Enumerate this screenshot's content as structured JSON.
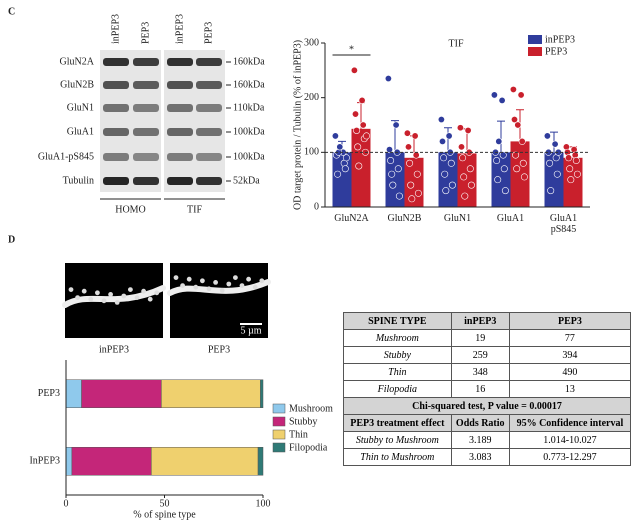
{
  "panels": {
    "c": "C",
    "d": "D"
  },
  "blot": {
    "columns": [
      "inPEP3",
      "PEP3",
      "inPEP3",
      "PEP3"
    ],
    "rows": [
      {
        "label": "GluN2A",
        "size": "160kDa"
      },
      {
        "label": "GluN2B",
        "size": "160kDa"
      },
      {
        "label": "GluN1",
        "size": "110kDa"
      },
      {
        "label": "GluA1",
        "size": "100kDa"
      },
      {
        "label": "GluA1-pS845",
        "size": "100kDa"
      },
      {
        "label": "Tubulin",
        "size": "52kDa"
      }
    ],
    "groups": [
      "HOMO",
      "TIF"
    ]
  },
  "chart_data": [
    {
      "type": "bar",
      "title": "TIF",
      "y_label": "OD target protein / Tubulin (% of  inPEP3)",
      "categories": [
        "GluN2A",
        "GluN2B",
        "GluN1",
        "GluA1",
        "GluA1\npS845"
      ],
      "series": [
        {
          "name": "inPEP3",
          "color": "#2f3c9c",
          "values": [
            100,
            100,
            100,
            100,
            100
          ],
          "errors": [
            20,
            58,
            45,
            57,
            37
          ],
          "points": [
            [
              130,
              100,
              95,
              80,
              60,
              70,
              100,
              90,
              110
            ],
            [
              235,
              150,
              105,
              100,
              85,
              70,
              60,
              20,
              40
            ],
            [
              160,
              130,
              120,
              100,
              90,
              80,
              60,
              40,
              30
            ],
            [
              205,
              195,
              100,
              95,
              85,
              70,
              50,
              30,
              120
            ],
            [
              130,
              115,
              100,
              90,
              80,
              60,
              30,
              100
            ]
          ]
        },
        {
          "name": "PEP3",
          "color": "#c9202c",
          "values": [
            143,
            90,
            98,
            120,
            90
          ],
          "errors": [
            48,
            40,
            45,
            58,
            20
          ],
          "points": [
            [
              250,
              195,
              170,
              150,
              140,
              125,
              110,
              100,
              75,
              130
            ],
            [
              135,
              130,
              110,
              95,
              80,
              60,
              40,
              25,
              15
            ],
            [
              145,
              140,
              110,
              100,
              90,
              70,
              55,
              40,
              20
            ],
            [
              215,
              205,
              160,
              120,
              95,
              80,
              70,
              55,
              150
            ],
            [
              110,
              105,
              100,
              95,
              90,
              85,
              70,
              60,
              50
            ]
          ]
        }
      ],
      "ylim": [
        0,
        300
      ],
      "yticks": [
        0,
        100,
        200,
        300
      ],
      "reference_line": 100,
      "significance": "*"
    },
    {
      "type": "barh",
      "stacked": true,
      "x_label": "% of  spine type",
      "categories": [
        "PEP3",
        "InPEP3"
      ],
      "series": [
        {
          "name": "Mushroom",
          "color": "#8fc9ec",
          "values": [
            7.9,
            3.0
          ]
        },
        {
          "name": "Stubby",
          "color": "#c42679",
          "values": [
            40.5,
            40.3
          ]
        },
        {
          "name": "Thin",
          "color": "#efd06e",
          "values": [
            50.3,
            54.2
          ]
        },
        {
          "name": "Filopodia",
          "color": "#2f7a76",
          "values": [
            1.3,
            2.5
          ]
        }
      ],
      "xlim": [
        0,
        100
      ],
      "xticks": [
        0,
        50,
        100
      ]
    }
  ],
  "micrographs": {
    "labels": [
      "inPEP3",
      "PEP3"
    ],
    "scale_bar": "5 µm"
  },
  "table": {
    "header": [
      "SPINE TYPE",
      "inPEP3",
      "PEP3"
    ],
    "rows": [
      [
        "Mushroom",
        "19",
        "77"
      ],
      [
        "Stubby",
        "259",
        "394"
      ],
      [
        "Thin",
        "348",
        "490"
      ],
      [
        "Filopodia",
        "16",
        "13"
      ]
    ],
    "test": "Chi-squared test, P value = 0.00017",
    "effect_header": [
      "PEP3 treatment effect",
      "Odds Ratio",
      "95% Confidence interval"
    ],
    "effect_rows": [
      [
        "Stubby to Mushroom",
        "3.189",
        "1.014-10.027"
      ],
      [
        "Thin to Mushroom",
        "3.083",
        "0.773-12.297"
      ]
    ]
  }
}
